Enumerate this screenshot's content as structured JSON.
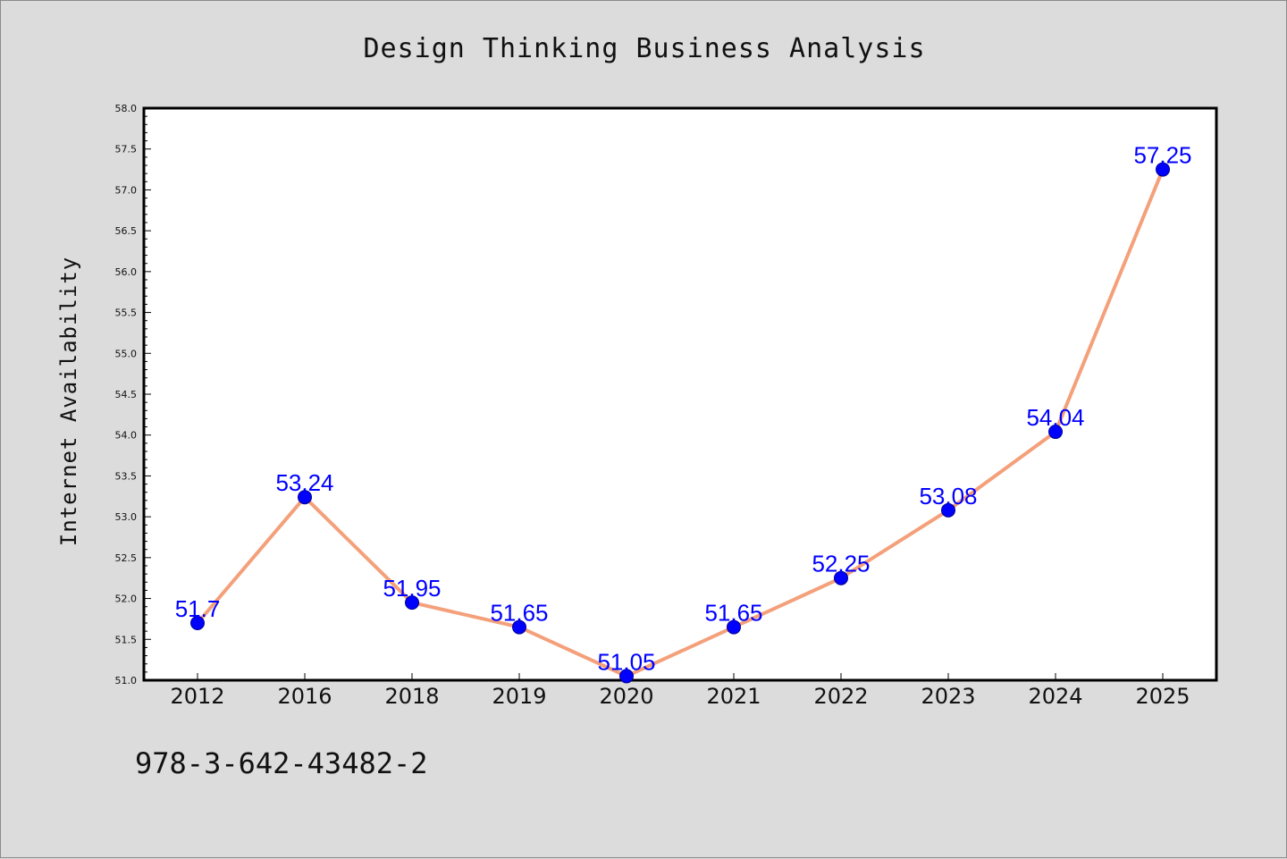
{
  "chart_data": {
    "type": "line",
    "title": "Design Thinking Business Analysis",
    "xlabel": "",
    "ylabel": "Internet Availability",
    "categories": [
      "2012",
      "2016",
      "2018",
      "2019",
      "2020",
      "2021",
      "2022",
      "2023",
      "2024",
      "2025"
    ],
    "series": [
      {
        "values": [
          51.7,
          53.24,
          51.95,
          51.65,
          51.05,
          51.65,
          52.25,
          53.08,
          54.04,
          57.25
        ],
        "labels": [
          "51.7",
          "53.24",
          "51.95",
          "51.65",
          "51.05",
          "51.65",
          "52.25",
          "53.08",
          "54.04",
          "57.25"
        ],
        "line_color": "#f4a07a",
        "marker_color": "#0000ff"
      }
    ],
    "ylim": [
      51.0,
      58.0
    ],
    "yticks": [
      "51.0",
      "51.5",
      "52.0",
      "52.5",
      "53.0",
      "53.5",
      "54.0",
      "54.5",
      "55.0",
      "55.5",
      "56.0",
      "56.5",
      "57.0",
      "57.5",
      "58.0"
    ],
    "grid": false,
    "legend": "none"
  },
  "footnote": "978-3-642-43482-2",
  "colors": {
    "background": "#dcdcdc",
    "plot_background": "#ffffff",
    "axis": "#000000",
    "label": "#0000ff"
  }
}
